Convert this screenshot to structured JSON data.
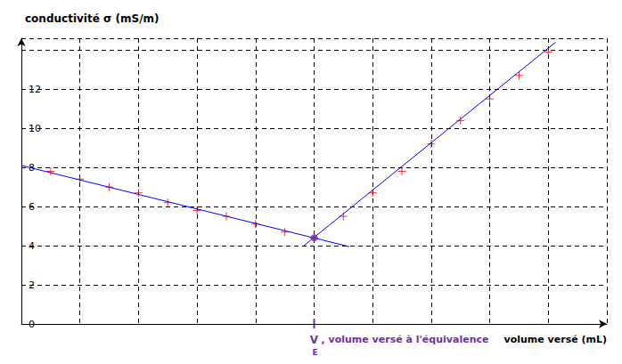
{
  "chart_data": {
    "type": "scatter",
    "y_label": "conductivité σ (mS/m)",
    "x_label": "volume versé (mL)",
    "xlim": [
      0,
      20
    ],
    "xticks": [
      0,
      2,
      4,
      6,
      8,
      10,
      12,
      14,
      16,
      18,
      20
    ],
    "ylim": [
      0,
      14.6
    ],
    "yticks": [
      0,
      2,
      4,
      6,
      8,
      10,
      12
    ],
    "grid": true,
    "tick_labels": "y",
    "series": [
      {
        "type": "scatter",
        "marker": "cross",
        "color": "#ff0000",
        "x": [
          1,
          2,
          3,
          4,
          5,
          6,
          7,
          8,
          9,
          10,
          11,
          12,
          13,
          14,
          15,
          16,
          17,
          18
        ],
        "values": [
          7.8,
          7.4,
          7.0,
          6.7,
          6.2,
          5.8,
          5.5,
          5.1,
          4.7,
          4.4,
          5.5,
          6.7,
          7.8,
          9.2,
          10.4,
          11.5,
          12.7,
          13.9
        ]
      },
      {
        "type": "line",
        "line_style": "solid",
        "color": "#0000ff",
        "x": [
          0,
          11.2
        ],
        "values": [
          8.1,
          3.95
        ]
      },
      {
        "type": "line",
        "line_style": "solid",
        "color": "#0000ff",
        "x": [
          9.65,
          18.25
        ],
        "values": [
          4.0,
          14.4
        ]
      }
    ],
    "annotation": {
      "x": 10,
      "y": 4.4,
      "text": "V",
      "subscript": "E",
      "suffix": ", volume versé à l'équivalence",
      "color": "#7030a0"
    }
  }
}
